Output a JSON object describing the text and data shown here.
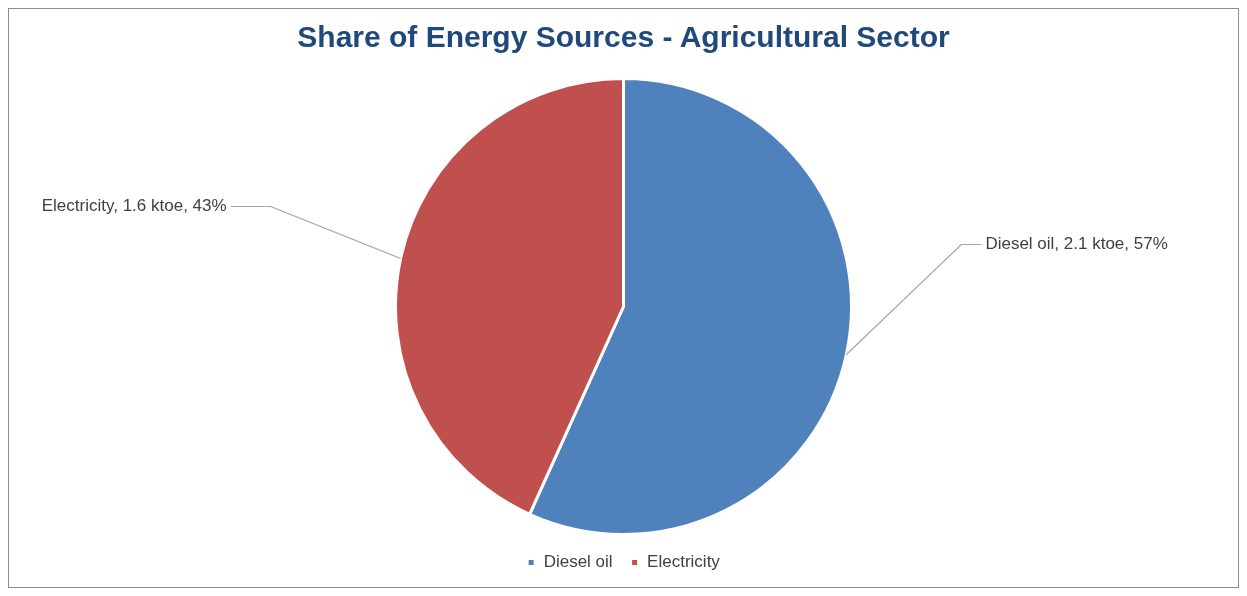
{
  "chart_data": {
    "type": "pie",
    "title": "Share of Energy Sources - Agricultural Sector",
    "categories": [
      "Diesel oil",
      "Electricity"
    ],
    "values": [
      2.1,
      1.6
    ],
    "colors": [
      "#4f81bd",
      "#c0504d"
    ],
    "value_labels": [
      "Diesel oil, 2.1 ktoe, 57%",
      "Electricity, 1.6 ktoe, 43%"
    ],
    "legend": "bottom"
  }
}
